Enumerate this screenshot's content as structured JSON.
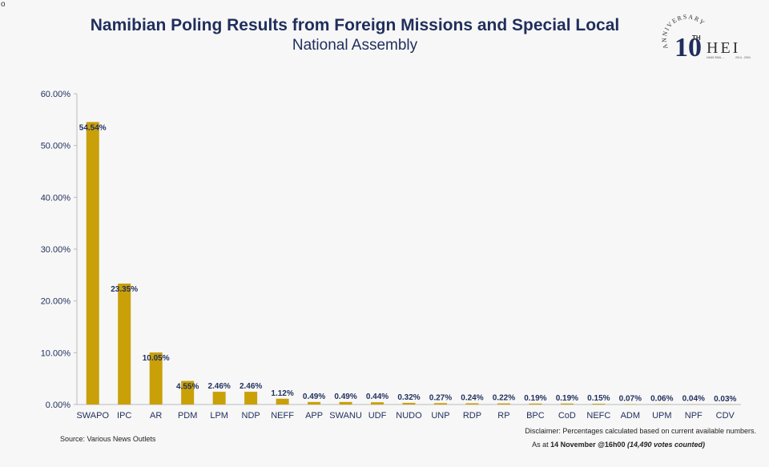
{
  "corner_mark": "o",
  "title": "Namibian Poling Results from Foreign Missions and Special Local",
  "subtitle": "National Assembly",
  "logo": {
    "top_text": "ANNIVERSARY",
    "number": "10",
    "suffix": "TH",
    "letters": "HEI",
    "tagline": "HANS EMIL ...",
    "years": "2014 - 2024"
  },
  "footer": {
    "source": "Source: Various News Outlets",
    "disclaimer": "Disclaimer: Percentages calculated based on current available numbers.",
    "asat_prefix": "As at",
    "asat_date": "14 November @16h00",
    "asat_count": "(14,490 votes counted)"
  },
  "colors": {
    "bar": "#c9a007",
    "text": "#1f2e5c",
    "axis": "#bbbbbb"
  },
  "chart_data": {
    "type": "bar",
    "title": "Namibian Poling Results from Foreign Missions and Special Local",
    "subtitle": "National Assembly",
    "categories": [
      "SWAPO",
      "IPC",
      "AR",
      "PDM",
      "LPM",
      "NDP",
      "NEFF",
      "APP",
      "SWANU",
      "UDF",
      "NUDO",
      "UNP",
      "RDP",
      "RP",
      "BPC",
      "CoD",
      "NEFC",
      "ADM",
      "UPM",
      "NPF",
      "CDV"
    ],
    "values": [
      54.54,
      23.35,
      10.05,
      4.55,
      2.46,
      2.46,
      1.12,
      0.49,
      0.49,
      0.44,
      0.32,
      0.27,
      0.24,
      0.22,
      0.19,
      0.19,
      0.15,
      0.07,
      0.06,
      0.04,
      0.03
    ],
    "labels": [
      "54.54%",
      "23.35%",
      "10.05%",
      "4.55%",
      "2.46%",
      "2.46%",
      "1.12%",
      "0.49%",
      "0.49%",
      "0.44%",
      "0.32%",
      "0.27%",
      "0.24%",
      "0.22%",
      "0.19%",
      "0.19%",
      "0.15%",
      "0.07%",
      "0.06%",
      "0.04%",
      "0.03%"
    ],
    "yticks": [
      "0.00%",
      "10.00%",
      "20.00%",
      "30.00%",
      "40.00%",
      "50.00%",
      "60.00%"
    ],
    "ylim": [
      0,
      60
    ],
    "grid": false,
    "legend": "none"
  }
}
